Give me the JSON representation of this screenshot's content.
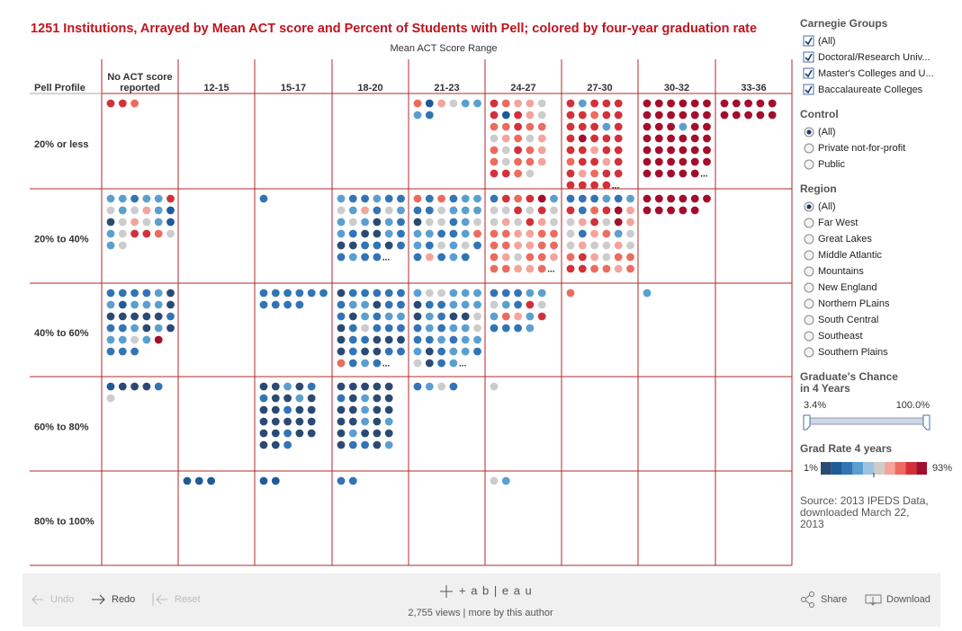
{
  "title": "1251 Institutions, Arrayed by Mean ACT score and Percent of Students with Pell; colored by four-year graduation rate",
  "axis_title": "Mean ACT Score Range",
  "row_header": "Pell Profile",
  "columns": [
    [
      "No ACT score",
      "reported"
    ],
    [
      "12-15"
    ],
    [
      "15-17"
    ],
    [
      "18-20"
    ],
    [
      "21-23"
    ],
    [
      "24-27"
    ],
    [
      "27-30"
    ],
    [
      "30-32"
    ],
    [
      "33-36"
    ]
  ],
  "rows": [
    "20% or less",
    "20% to 40%",
    "40% to 60%",
    "60% to 80%",
    "80% to 100%"
  ],
  "cells": [
    [
      {
        "dots": [
          [
            8,
            8,
            7
          ]
        ]
      },
      {
        "dots": []
      },
      {
        "dots": []
      },
      {
        "dots": []
      },
      {
        "dots": [
          [
            7,
            1,
            6,
            5,
            3,
            3
          ],
          [
            3,
            2
          ]
        ]
      },
      {
        "dots": [
          [
            8,
            7,
            6,
            6,
            5
          ],
          [
            8,
            1,
            8,
            6,
            5
          ],
          [
            7,
            7,
            8,
            7,
            7
          ],
          [
            5,
            6,
            7,
            5,
            6
          ],
          [
            7,
            5,
            8,
            7,
            6
          ],
          [
            7,
            5,
            7,
            7,
            6
          ],
          [
            8,
            8,
            7,
            5
          ]
        ]
      },
      {
        "dots": [
          [
            8,
            3,
            8,
            8,
            8
          ],
          [
            8,
            8,
            7,
            8,
            8
          ],
          [
            8,
            8,
            8,
            3,
            8
          ],
          [
            8,
            9,
            8,
            8,
            8
          ],
          [
            8,
            8,
            6,
            8,
            8
          ],
          [
            7,
            8,
            8,
            6,
            8
          ],
          [
            8,
            6,
            7,
            8,
            8
          ],
          [
            8,
            8,
            8,
            8
          ]
        ],
        "more": "..."
      },
      {
        "dots": [
          [
            9,
            9,
            9,
            9,
            9,
            9
          ],
          [
            9,
            9,
            9,
            9,
            9,
            9
          ],
          [
            9,
            9,
            9,
            3,
            9,
            9
          ],
          [
            9,
            9,
            9,
            9,
            9,
            9
          ],
          [
            9,
            9,
            9,
            9,
            9,
            9
          ],
          [
            9,
            9,
            9,
            9,
            9,
            9
          ],
          [
            9,
            9,
            9,
            9,
            9
          ]
        ],
        "more": "..."
      },
      {
        "dots": [
          [
            9,
            9,
            9,
            9,
            9
          ],
          [
            9,
            9,
            9,
            9,
            9
          ]
        ]
      }
    ],
    [
      {
        "dots": [
          [
            3,
            3,
            2,
            3,
            3,
            8
          ],
          [
            5,
            3,
            5,
            6,
            3,
            1
          ],
          [
            0,
            5,
            6,
            5,
            3,
            1
          ],
          [
            3,
            5,
            8,
            8,
            7,
            5
          ],
          [
            3,
            5
          ]
        ]
      },
      {
        "dots": []
      },
      {
        "dots": [
          [
            2
          ]
        ]
      },
      {
        "dots": [
          [
            3,
            2,
            2,
            3,
            2,
            2
          ],
          [
            5,
            3,
            6,
            2,
            5,
            3
          ],
          [
            3,
            5,
            3,
            0,
            3,
            2
          ],
          [
            3,
            2,
            0,
            0,
            3,
            2
          ],
          [
            0,
            0,
            2,
            2,
            0,
            2
          ],
          [
            2,
            3,
            2,
            2
          ]
        ],
        "more": "..."
      },
      {
        "dots": [
          [
            7,
            2,
            7,
            2,
            3,
            3
          ],
          [
            2,
            2,
            5,
            3,
            3,
            3
          ],
          [
            0,
            5,
            5,
            2,
            3,
            5
          ],
          [
            3,
            3,
            2,
            2,
            3,
            7
          ],
          [
            3,
            2,
            5,
            3,
            5,
            2
          ],
          [
            2,
            6,
            2,
            3,
            2
          ]
        ]
      },
      {
        "dots": [
          [
            2,
            8,
            7,
            8,
            9,
            3
          ],
          [
            5,
            5,
            8,
            5,
            8,
            5
          ],
          [
            5,
            6,
            5,
            8,
            6,
            5
          ],
          [
            7,
            7,
            6,
            6,
            7,
            7
          ],
          [
            7,
            7,
            6,
            6,
            7,
            7
          ],
          [
            7,
            6,
            5,
            7,
            7,
            6
          ],
          [
            7,
            7,
            6,
            6,
            7
          ]
        ],
        "more": "..."
      },
      {
        "dots": [
          [
            2,
            2,
            2,
            3,
            2,
            3
          ],
          [
            8,
            2,
            7,
            8,
            9,
            6
          ],
          [
            5,
            6,
            8,
            5,
            9,
            6
          ],
          [
            5,
            2,
            6,
            7,
            3,
            5
          ],
          [
            5,
            6,
            5,
            5,
            6,
            5
          ],
          [
            7,
            8,
            6,
            5,
            7,
            7
          ],
          [
            8,
            8,
            7,
            7,
            6,
            7
          ]
        ]
      },
      {
        "dots": [
          [
            9,
            9,
            9,
            9,
            9,
            9
          ],
          [
            9,
            9,
            9,
            9,
            9
          ]
        ]
      },
      {
        "dots": []
      }
    ],
    [
      {
        "dots": [
          [
            2,
            2,
            2,
            2,
            3,
            0
          ],
          [
            3,
            1,
            3,
            3,
            3,
            0
          ],
          [
            0,
            0,
            0,
            0,
            0,
            2
          ],
          [
            2,
            2,
            3,
            0,
            3,
            0
          ],
          [
            3,
            3,
            5,
            3,
            9
          ],
          [
            2,
            2,
            2
          ]
        ]
      },
      {
        "dots": []
      },
      {
        "dots": [
          [
            2,
            2,
            2,
            2,
            2,
            2
          ],
          [
            2,
            2,
            2,
            2
          ]
        ]
      },
      {
        "dots": [
          [
            0,
            2,
            2,
            2,
            2,
            2
          ],
          [
            2,
            3,
            3,
            0,
            2,
            2
          ],
          [
            2,
            0,
            3,
            2,
            3,
            3
          ],
          [
            0,
            2,
            5,
            2,
            2,
            2
          ],
          [
            0,
            2,
            2,
            0,
            0,
            0
          ],
          [
            0,
            2,
            0,
            0,
            2,
            2
          ],
          [
            7,
            2,
            3,
            2
          ]
        ],
        "more": "..."
      },
      {
        "dots": [
          [
            3,
            5,
            5,
            3,
            3,
            3
          ],
          [
            0,
            2,
            2,
            3,
            3,
            3
          ],
          [
            0,
            3,
            2,
            0,
            0,
            5
          ],
          [
            2,
            3,
            2,
            3,
            3,
            5
          ],
          [
            2,
            2,
            3,
            2,
            3,
            3
          ],
          [
            3,
            0,
            2,
            3,
            3,
            2
          ],
          [
            5,
            0,
            2,
            3
          ]
        ],
        "more": "..."
      },
      {
        "dots": [
          [
            2,
            2,
            2,
            3,
            3
          ],
          [
            5,
            3,
            2,
            8,
            5
          ],
          [
            3,
            7,
            6,
            3,
            8
          ],
          [
            2,
            2,
            2,
            3
          ]
        ]
      },
      {
        "dots": [
          [
            7
          ]
        ]
      },
      {
        "dots": [
          [
            3
          ]
        ]
      },
      {
        "dots": []
      }
    ],
    [
      {
        "dots": [
          [
            1,
            0,
            0,
            0,
            2
          ],
          [
            5
          ]
        ]
      },
      {
        "dots": []
      },
      {
        "dots": [
          [
            0,
            0,
            3,
            0,
            2
          ],
          [
            2,
            0,
            0,
            3,
            0
          ],
          [
            0,
            0,
            2,
            0,
            0
          ],
          [
            0,
            0,
            0,
            0,
            0
          ],
          [
            0,
            0,
            2,
            0,
            0
          ],
          [
            0,
            0,
            2
          ]
        ]
      },
      {
        "dots": [
          [
            0,
            0,
            0,
            0,
            0
          ],
          [
            2,
            0,
            3,
            0,
            0
          ],
          [
            0,
            0,
            3,
            0,
            0
          ],
          [
            0,
            0,
            3,
            0,
            3
          ],
          [
            0,
            3,
            0,
            0,
            0
          ],
          [
            0,
            2,
            2,
            0,
            3
          ]
        ]
      },
      {
        "dots": [
          [
            2,
            3,
            5,
            2
          ]
        ]
      },
      {
        "dots": [
          [
            5
          ]
        ]
      },
      {
        "dots": []
      },
      {
        "dots": []
      },
      {
        "dots": []
      }
    ],
    [
      {
        "dots": []
      },
      {
        "dots": [
          [
            1,
            1,
            1
          ]
        ]
      },
      {
        "dots": [
          [
            1,
            1
          ]
        ]
      },
      {
        "dots": [
          [
            2,
            2
          ]
        ]
      },
      {
        "dots": []
      },
      {
        "dots": [
          [
            5,
            3
          ]
        ]
      },
      {
        "dots": []
      },
      {
        "dots": []
      },
      {
        "dots": []
      }
    ]
  ],
  "carnegie": {
    "title": "Carnegie Groups",
    "options": [
      "(All)",
      "Doctoral/Research Univ...",
      "Master's Colleges and U...",
      "Baccalaureate Colleges"
    ]
  },
  "control": {
    "title": "Control",
    "options": [
      "(All)",
      "Private not-for-profit",
      "Public"
    ]
  },
  "region": {
    "title": "Region",
    "options": [
      "(All)",
      "Far West",
      "Great Lakes",
      "Middle Atlantic",
      "Mountains",
      "New England",
      "Northern PLains",
      "South Central",
      "Southeast",
      "Southern Plains"
    ]
  },
  "slider": {
    "title": [
      "Graduate's Chance",
      "in 4 Years"
    ],
    "min_label": "3.4%",
    "max_label": "100.0%"
  },
  "legend": {
    "title": "Grad Rate 4 years",
    "low": "1%",
    "high": "93%",
    "colors": [
      "#2b4a73",
      "#1f5b99",
      "#3274b5",
      "#5a9fd0",
      "#9cc2e0",
      "#cccccc",
      "#f4a49c",
      "#ec6b5e",
      "#d3303a",
      "#a30e2c"
    ]
  },
  "source": [
    "Source: 2013 IPEDS Data,",
    "downloaded March 22,",
    "2013"
  ],
  "toolbar": {
    "undo": "Undo",
    "redo": "Redo",
    "reset": "Reset",
    "brand": "+ a b | e a u",
    "views": "2,755 views | more by this author",
    "share": "Share",
    "download": "Download"
  }
}
